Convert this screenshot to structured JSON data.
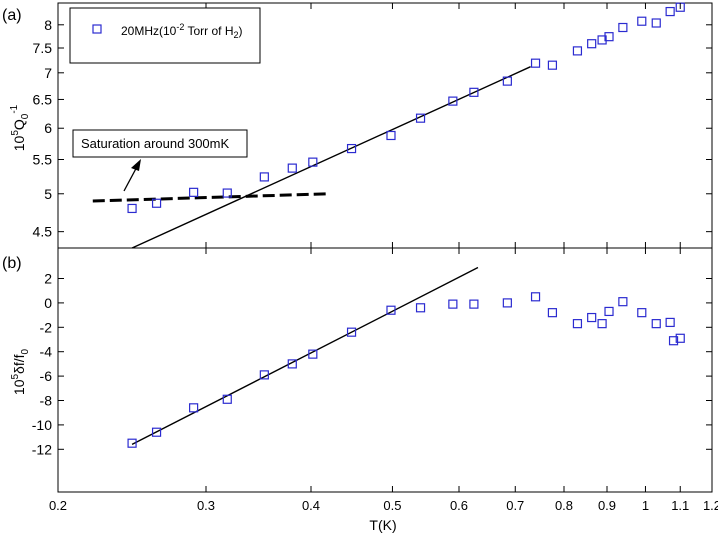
{
  "chart_data": [
    {
      "panel_label": "(a)",
      "type": "scatter",
      "ylabel": {
        "base": "10",
        "exp": "5",
        "q": "Q",
        "sub": "0",
        "sup": "-1"
      },
      "xscale": "log",
      "yscale": "log",
      "xlim": [
        0.2,
        1.2
      ],
      "ylim": [
        4.3,
        8.5
      ],
      "yticks": [
        4.5,
        5,
        5.5,
        6,
        6.5,
        7,
        7.5,
        8
      ],
      "legend": {
        "position": "top-left",
        "prefix": "20MHz(10",
        "sup": "-2",
        "mid": " Torr of H",
        "sub": "2",
        "suffix": ")"
      },
      "series": [
        {
          "marker": "square",
          "color": "#2b2bd0",
          "x": [
            0.245,
            0.262,
            0.29,
            0.318,
            0.352,
            0.38,
            0.402,
            0.447,
            0.498,
            0.54,
            0.59,
            0.625,
            0.685,
            0.74,
            0.775,
            0.83,
            0.863,
            0.888,
            0.905,
            0.94,
            0.99,
            1.03,
            1.07,
            1.1
          ],
          "y": [
            4.8,
            4.87,
            5.02,
            5.01,
            5.24,
            5.37,
            5.46,
            5.67,
            5.88,
            6.17,
            6.47,
            6.63,
            6.84,
            7.19,
            7.15,
            7.44,
            7.59,
            7.67,
            7.74,
            7.94,
            8.08,
            8.04,
            8.3,
            8.4
          ]
        }
      ],
      "fit_line": {
        "style": "solid",
        "x": [
          0.245,
          0.73
        ],
        "y": [
          4.3,
          7.12
        ]
      },
      "saturation_line": {
        "style": "dashed",
        "x": [
          0.22,
          0.42
        ],
        "y": [
          4.9,
          5.0
        ]
      },
      "annotation": {
        "text": "Saturation around 300mK",
        "arrow_to": [
          0.275,
          4.97
        ]
      }
    },
    {
      "panel_label": "(b)",
      "type": "scatter",
      "ylabel": {
        "base": "10",
        "exp": "5",
        "delta": "δf/f",
        "sub": "0"
      },
      "xlabel": "T(K)",
      "xscale": "log",
      "xlim": [
        0.2,
        1.2
      ],
      "ylim": [
        -15.5,
        4.5
      ],
      "yticks": [
        -12,
        -10,
        -8,
        -6,
        -4,
        -2,
        0,
        2
      ],
      "xticks": [
        0.2,
        0.3,
        0.4,
        0.5,
        0.6,
        0.7,
        0.8,
        0.9,
        1,
        1.1,
        1.2
      ],
      "xticklabels": [
        "0.2",
        "0.3",
        "0.4",
        "0.5",
        "0.6",
        "0.7",
        "0.8",
        "0.9",
        "1",
        "1.1",
        "1.2"
      ],
      "series": [
        {
          "marker": "square",
          "color": "#2b2bd0",
          "x": [
            0.245,
            0.262,
            0.29,
            0.318,
            0.352,
            0.38,
            0.402,
            0.447,
            0.498,
            0.54,
            0.59,
            0.625,
            0.685,
            0.74,
            0.775,
            0.83,
            0.863,
            0.888,
            0.905,
            0.94,
            0.99,
            1.03,
            1.07,
            1.08,
            1.1
          ],
          "y": [
            -11.5,
            -10.6,
            -8.6,
            -7.9,
            -5.9,
            -5.0,
            -4.2,
            -2.4,
            -0.6,
            -0.4,
            -0.1,
            -0.1,
            0.0,
            0.5,
            -0.8,
            -1.7,
            -1.2,
            -1.7,
            -0.7,
            0.1,
            -0.8,
            -1.7,
            -1.6,
            -3.1,
            -2.9
          ]
        }
      ],
      "fit_line": {
        "style": "solid",
        "x": [
          0.245,
          0.632
        ],
        "y": [
          -11.6,
          2.9
        ]
      }
    }
  ]
}
